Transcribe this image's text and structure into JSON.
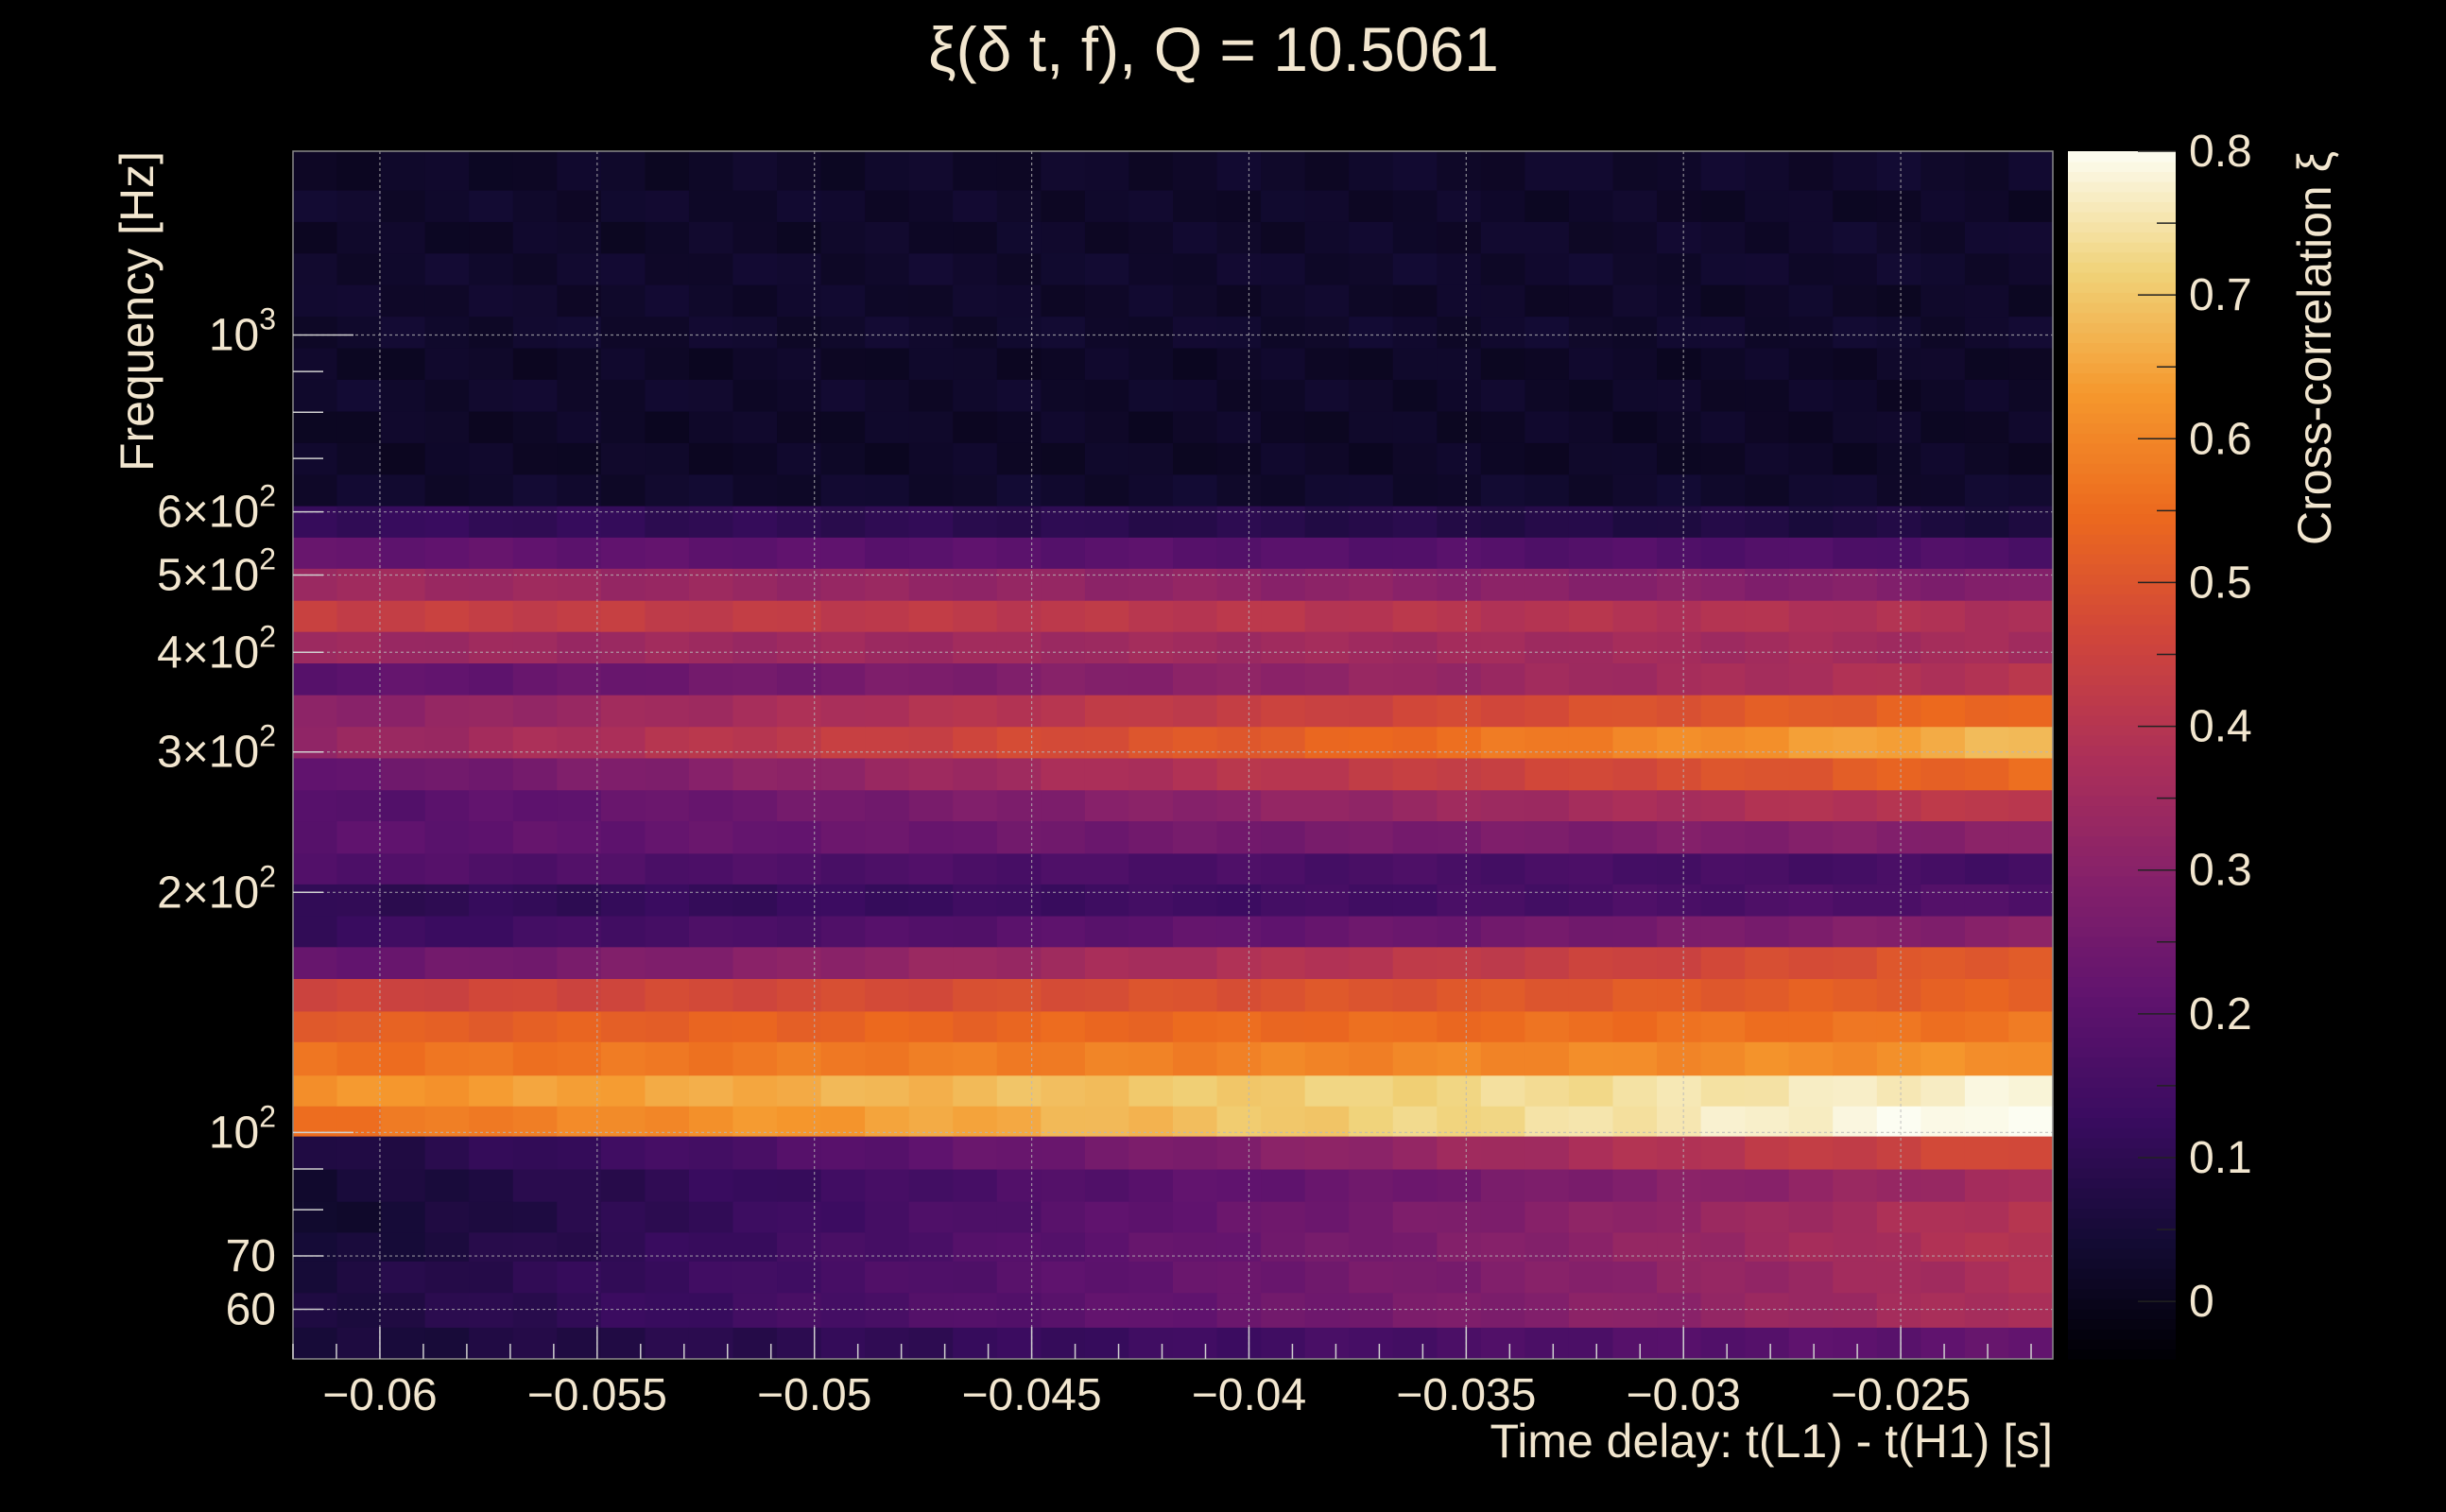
{
  "chart_data": {
    "type": "heatmap",
    "title": "ξ(δ t, f), Q = 10.5061",
    "xlabel": "Time delay: t(L1) - t(H1) [s]",
    "ylabel": "Frequency [Hz]",
    "zlabel": "Cross-correlation ξ",
    "x_scale": "linear",
    "y_scale": "log",
    "xlim": [
      -0.062,
      -0.0215
    ],
    "ylim": [
      52,
      1700
    ],
    "zlim": [
      -0.04,
      0.8
    ],
    "grid": true,
    "colormap": "inferno",
    "x_ticks": [
      {
        "value": -0.06,
        "label": "−0.06"
      },
      {
        "value": -0.055,
        "label": "−0.055"
      },
      {
        "value": -0.05,
        "label": "−0.05"
      },
      {
        "value": -0.045,
        "label": "−0.045"
      },
      {
        "value": -0.04,
        "label": "−0.04"
      },
      {
        "value": -0.035,
        "label": "−0.035"
      },
      {
        "value": -0.03,
        "label": "−0.03"
      },
      {
        "value": -0.025,
        "label": "−0.025"
      }
    ],
    "y_ticks": [
      {
        "value": 60,
        "label": "60"
      },
      {
        "value": 70,
        "label": "70"
      },
      {
        "value": 100,
        "label": "10",
        "exp": "2"
      },
      {
        "value": 200,
        "label": "2×10",
        "exp": "2"
      },
      {
        "value": 300,
        "label": "3×10",
        "exp": "2"
      },
      {
        "value": 400,
        "label": "4×10",
        "exp": "2"
      },
      {
        "value": 500,
        "label": "5×10",
        "exp": "2"
      },
      {
        "value": 600,
        "label": "6×10",
        "exp": "2"
      },
      {
        "value": 1000,
        "label": "10",
        "exp": "3"
      }
    ],
    "z_ticks": [
      {
        "value": 0,
        "label": "0"
      },
      {
        "value": 0.1,
        "label": "0.1"
      },
      {
        "value": 0.2,
        "label": "0.2"
      },
      {
        "value": 0.3,
        "label": "0.3"
      },
      {
        "value": 0.4,
        "label": "0.4"
      },
      {
        "value": 0.5,
        "label": "0.5"
      },
      {
        "value": 0.6,
        "label": "0.6"
      },
      {
        "value": 0.7,
        "label": "0.7"
      },
      {
        "value": 0.8,
        "label": "0.8"
      }
    ],
    "n_columns": 40,
    "rows": [
      {
        "f_lo": 52,
        "f_hi": 57,
        "start": 0.05,
        "end": 0.22
      },
      {
        "f_lo": 57,
        "f_hi": 63,
        "start": 0.06,
        "end": 0.38
      },
      {
        "f_lo": 63,
        "f_hi": 69,
        "start": 0.06,
        "end": 0.38
      },
      {
        "f_lo": 69,
        "f_hi": 75,
        "start": 0.04,
        "end": 0.4
      },
      {
        "f_lo": 75,
        "f_hi": 82,
        "start": 0.03,
        "end": 0.4
      },
      {
        "f_lo": 82,
        "f_hi": 90,
        "start": 0.04,
        "end": 0.36
      },
      {
        "f_lo": 90,
        "f_hi": 99,
        "start": 0.06,
        "end": 0.48
      },
      {
        "f_lo": 99,
        "f_hi": 108,
        "start": 0.56,
        "end": 0.81
      },
      {
        "f_lo": 108,
        "f_hi": 118,
        "start": 0.62,
        "end": 0.78
      },
      {
        "f_lo": 118,
        "f_hi": 130,
        "start": 0.56,
        "end": 0.62
      },
      {
        "f_lo": 130,
        "f_hi": 142,
        "start": 0.52,
        "end": 0.57
      },
      {
        "f_lo": 142,
        "f_hi": 156,
        "start": 0.45,
        "end": 0.53
      },
      {
        "f_lo": 156,
        "f_hi": 171,
        "start": 0.22,
        "end": 0.52
      },
      {
        "f_lo": 171,
        "f_hi": 187,
        "start": 0.12,
        "end": 0.3
      },
      {
        "f_lo": 187,
        "f_hi": 205,
        "start": 0.1,
        "end": 0.18
      },
      {
        "f_lo": 205,
        "f_hi": 224,
        "start": 0.18,
        "end": 0.15
      },
      {
        "f_lo": 224,
        "f_hi": 246,
        "start": 0.2,
        "end": 0.3
      },
      {
        "f_lo": 246,
        "f_hi": 269,
        "start": 0.18,
        "end": 0.42
      },
      {
        "f_lo": 269,
        "f_hi": 295,
        "start": 0.22,
        "end": 0.55
      },
      {
        "f_lo": 295,
        "f_hi": 323,
        "start": 0.32,
        "end": 0.68
      },
      {
        "f_lo": 323,
        "f_hi": 354,
        "start": 0.3,
        "end": 0.55
      },
      {
        "f_lo": 354,
        "f_hi": 388,
        "start": 0.2,
        "end": 0.4
      },
      {
        "f_lo": 388,
        "f_hi": 425,
        "start": 0.34,
        "end": 0.36
      },
      {
        "f_lo": 425,
        "f_hi": 465,
        "start": 0.44,
        "end": 0.38
      },
      {
        "f_lo": 465,
        "f_hi": 510,
        "start": 0.35,
        "end": 0.28
      },
      {
        "f_lo": 510,
        "f_hi": 558,
        "start": 0.22,
        "end": 0.17
      },
      {
        "f_lo": 558,
        "f_hi": 611,
        "start": 0.12,
        "end": 0.06
      },
      {
        "f_lo": 611,
        "f_hi": 669,
        "start": 0.03,
        "end": 0.03
      },
      {
        "f_lo": 669,
        "f_hi": 733,
        "start": 0.02,
        "end": 0.02
      },
      {
        "f_lo": 733,
        "f_hi": 803,
        "start": 0.02,
        "end": 0.02
      },
      {
        "f_lo": 803,
        "f_hi": 880,
        "start": 0.03,
        "end": 0.02
      },
      {
        "f_lo": 880,
        "f_hi": 964,
        "start": 0.02,
        "end": 0.02
      },
      {
        "f_lo": 964,
        "f_hi": 1056,
        "start": 0.03,
        "end": 0.03
      },
      {
        "f_lo": 1056,
        "f_hi": 1157,
        "start": 0.03,
        "end": 0.02
      },
      {
        "f_lo": 1157,
        "f_hi": 1267,
        "start": 0.03,
        "end": 0.03
      },
      {
        "f_lo": 1267,
        "f_hi": 1388,
        "start": 0.02,
        "end": 0.03
      },
      {
        "f_lo": 1388,
        "f_hi": 1520,
        "start": 0.03,
        "end": 0.02
      },
      {
        "f_lo": 1520,
        "f_hi": 1700,
        "start": 0.02,
        "end": 0.03
      }
    ]
  }
}
